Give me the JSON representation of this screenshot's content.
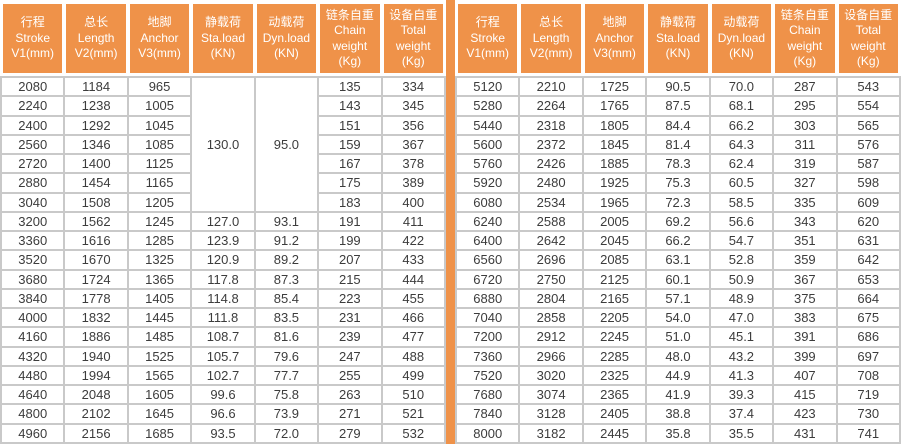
{
  "styles": {
    "header_bg": "#EF9249",
    "header_text": "#FFFFFF",
    "grid_border": "#C9C9C9",
    "cell_text": "#3C3C3C",
    "divider_color": "#EF9249"
  },
  "chart_data": {
    "type": "table",
    "title": "",
    "column_headers": [
      [
        "行程",
        "Stroke",
        "V1(mm)"
      ],
      [
        "总长",
        "Length",
        "V2(mm)"
      ],
      [
        "地脚",
        "Anchor",
        "V3(mm)"
      ],
      [
        "静载荷",
        "Sta.load",
        "(KN)"
      ],
      [
        "动载荷",
        "Dyn.load",
        "(KN)"
      ],
      [
        "链条自重",
        "Chain",
        "weight",
        "(Kg)"
      ],
      [
        "设备自重",
        "Total",
        "weight",
        "(Kg)"
      ]
    ],
    "left_merges": [
      {
        "row": 0,
        "col": 3,
        "rowspan": 7,
        "value": "130.0"
      },
      {
        "row": 0,
        "col": 4,
        "rowspan": 7,
        "value": "95.0"
      }
    ],
    "left_rows": [
      [
        "2080",
        "1184",
        "965",
        "130.0",
        "95.0",
        "135",
        "334"
      ],
      [
        "2240",
        "1238",
        "1005",
        null,
        null,
        "143",
        "345"
      ],
      [
        "2400",
        "1292",
        "1045",
        null,
        null,
        "151",
        "356"
      ],
      [
        "2560",
        "1346",
        "1085",
        null,
        null,
        "159",
        "367"
      ],
      [
        "2720",
        "1400",
        "1125",
        null,
        null,
        "167",
        "378"
      ],
      [
        "2880",
        "1454",
        "1165",
        null,
        null,
        "175",
        "389"
      ],
      [
        "3040",
        "1508",
        "1205",
        null,
        null,
        "183",
        "400"
      ],
      [
        "3200",
        "1562",
        "1245",
        "127.0",
        "93.1",
        "191",
        "411"
      ],
      [
        "3360",
        "1616",
        "1285",
        "123.9",
        "91.2",
        "199",
        "422"
      ],
      [
        "3520",
        "1670",
        "1325",
        "120.9",
        "89.2",
        "207",
        "433"
      ],
      [
        "3680",
        "1724",
        "1365",
        "117.8",
        "87.3",
        "215",
        "444"
      ],
      [
        "3840",
        "1778",
        "1405",
        "114.8",
        "85.4",
        "223",
        "455"
      ],
      [
        "4000",
        "1832",
        "1445",
        "111.8",
        "83.5",
        "231",
        "466"
      ],
      [
        "4160",
        "1886",
        "1485",
        "108.7",
        "81.6",
        "239",
        "477"
      ],
      [
        "4320",
        "1940",
        "1525",
        "105.7",
        "79.6",
        "247",
        "488"
      ],
      [
        "4480",
        "1994",
        "1565",
        "102.7",
        "77.7",
        "255",
        "499"
      ],
      [
        "4640",
        "2048",
        "1605",
        "99.6",
        "75.8",
        "263",
        "510"
      ],
      [
        "4800",
        "2102",
        "1645",
        "96.6",
        "73.9",
        "271",
        "521"
      ],
      [
        "4960",
        "2156",
        "1685",
        "93.5",
        "72.0",
        "279",
        "532"
      ]
    ],
    "right_merges": [],
    "right_rows": [
      [
        "5120",
        "2210",
        "1725",
        "90.5",
        "70.0",
        "287",
        "543"
      ],
      [
        "5280",
        "2264",
        "1765",
        "87.5",
        "68.1",
        "295",
        "554"
      ],
      [
        "5440",
        "2318",
        "1805",
        "84.4",
        "66.2",
        "303",
        "565"
      ],
      [
        "5600",
        "2372",
        "1845",
        "81.4",
        "64.3",
        "311",
        "576"
      ],
      [
        "5760",
        "2426",
        "1885",
        "78.3",
        "62.4",
        "319",
        "587"
      ],
      [
        "5920",
        "2480",
        "1925",
        "75.3",
        "60.5",
        "327",
        "598"
      ],
      [
        "6080",
        "2534",
        "1965",
        "72.3",
        "58.5",
        "335",
        "609"
      ],
      [
        "6240",
        "2588",
        "2005",
        "69.2",
        "56.6",
        "343",
        "620"
      ],
      [
        "6400",
        "2642",
        "2045",
        "66.2",
        "54.7",
        "351",
        "631"
      ],
      [
        "6560",
        "2696",
        "2085",
        "63.1",
        "52.8",
        "359",
        "642"
      ],
      [
        "6720",
        "2750",
        "2125",
        "60.1",
        "50.9",
        "367",
        "653"
      ],
      [
        "6880",
        "2804",
        "2165",
        "57.1",
        "48.9",
        "375",
        "664"
      ],
      [
        "7040",
        "2858",
        "2205",
        "54.0",
        "47.0",
        "383",
        "675"
      ],
      [
        "7200",
        "2912",
        "2245",
        "51.0",
        "45.1",
        "391",
        "686"
      ],
      [
        "7360",
        "2966",
        "2285",
        "48.0",
        "43.2",
        "399",
        "697"
      ],
      [
        "7520",
        "3020",
        "2325",
        "44.9",
        "41.3",
        "407",
        "708"
      ],
      [
        "7680",
        "3074",
        "2365",
        "41.9",
        "39.3",
        "415",
        "719"
      ],
      [
        "7840",
        "3128",
        "2405",
        "38.8",
        "37.4",
        "423",
        "730"
      ],
      [
        "8000",
        "3182",
        "2445",
        "35.8",
        "35.5",
        "431",
        "741"
      ]
    ]
  }
}
